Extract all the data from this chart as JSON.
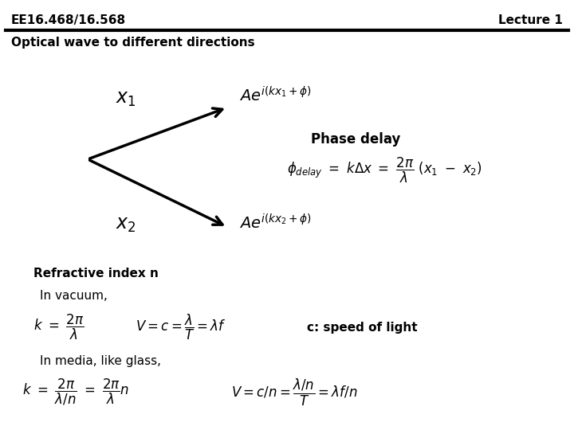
{
  "header_left": "EE16.468/16.568",
  "header_right": "Lecture 1",
  "title": "Optical wave to different directions",
  "bg_color": "#ffffff",
  "text_color": "#000000"
}
